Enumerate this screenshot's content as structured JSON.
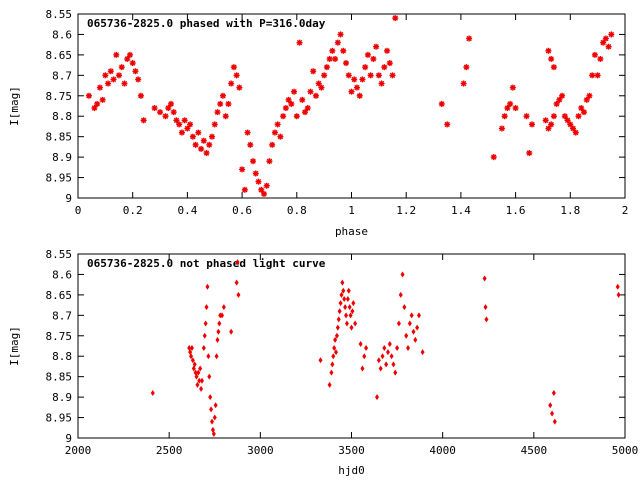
{
  "chart_data": [
    {
      "type": "scatter",
      "title": "065736-2825.0 phased with P=316.0day",
      "xlabel": "phase",
      "ylabel": "I[mag]",
      "xlim": [
        0,
        2
      ],
      "ylim": [
        8.55,
        9
      ],
      "y_inverted": true,
      "x_ticks": [
        "0",
        "0.2",
        "0.4",
        "0.6",
        "0.8",
        "1",
        "1.2",
        "1.4",
        "1.6",
        "1.8",
        "2"
      ],
      "y_ticks": [
        "8.55",
        "8.6",
        "8.65",
        "8.7",
        "8.75",
        "8.8",
        "8.85",
        "8.9",
        "8.95",
        "9"
      ],
      "series": [
        {
          "color": "#ee0000",
          "marker": "asterisk",
          "points": [
            [
              0.04,
              8.75
            ],
            [
              0.06,
              8.78
            ],
            [
              0.07,
              8.77
            ],
            [
              0.08,
              8.73
            ],
            [
              0.09,
              8.76
            ],
            [
              0.1,
              8.7
            ],
            [
              0.11,
              8.72
            ],
            [
              0.12,
              8.69
            ],
            [
              0.13,
              8.71
            ],
            [
              0.14,
              8.65
            ],
            [
              0.15,
              8.7
            ],
            [
              0.16,
              8.68
            ],
            [
              0.17,
              8.72
            ],
            [
              0.18,
              8.66
            ],
            [
              0.19,
              8.65
            ],
            [
              0.2,
              8.67
            ],
            [
              0.21,
              8.69
            ],
            [
              0.22,
              8.71
            ],
            [
              0.23,
              8.75
            ],
            [
              0.24,
              8.81
            ],
            [
              0.28,
              8.78
            ],
            [
              0.3,
              8.79
            ],
            [
              0.32,
              8.8
            ],
            [
              0.33,
              8.78
            ],
            [
              0.34,
              8.77
            ],
            [
              0.35,
              8.79
            ],
            [
              0.36,
              8.81
            ],
            [
              0.37,
              8.82
            ],
            [
              0.38,
              8.84
            ],
            [
              0.39,
              8.81
            ],
            [
              0.4,
              8.83
            ],
            [
              0.41,
              8.82
            ],
            [
              0.42,
              8.85
            ],
            [
              0.43,
              8.87
            ],
            [
              0.44,
              8.84
            ],
            [
              0.45,
              8.88
            ],
            [
              0.46,
              8.86
            ],
            [
              0.47,
              8.89
            ],
            [
              0.48,
              8.87
            ],
            [
              0.49,
              8.85
            ],
            [
              0.5,
              8.82
            ],
            [
              0.51,
              8.79
            ],
            [
              0.52,
              8.77
            ],
            [
              0.53,
              8.75
            ],
            [
              0.54,
              8.8
            ],
            [
              0.55,
              8.77
            ],
            [
              0.56,
              8.72
            ],
            [
              0.57,
              8.68
            ],
            [
              0.58,
              8.7
            ],
            [
              0.59,
              8.73
            ],
            [
              0.6,
              8.93
            ],
            [
              0.61,
              8.98
            ],
            [
              0.62,
              8.84
            ],
            [
              0.63,
              8.87
            ],
            [
              0.64,
              8.91
            ],
            [
              0.65,
              8.94
            ],
            [
              0.66,
              8.96
            ],
            [
              0.67,
              8.98
            ],
            [
              0.68,
              8.99
            ],
            [
              0.69,
              8.97
            ],
            [
              0.7,
              8.91
            ],
            [
              0.71,
              8.87
            ],
            [
              0.72,
              8.84
            ],
            [
              0.73,
              8.82
            ],
            [
              0.74,
              8.85
            ],
            [
              0.75,
              8.8
            ],
            [
              0.76,
              8.78
            ],
            [
              0.77,
              8.76
            ],
            [
              0.78,
              8.77
            ],
            [
              0.79,
              8.74
            ],
            [
              0.8,
              8.8
            ],
            [
              0.81,
              8.62
            ],
            [
              0.82,
              8.76
            ],
            [
              0.83,
              8.79
            ],
            [
              0.84,
              8.78
            ],
            [
              0.85,
              8.74
            ],
            [
              0.86,
              8.69
            ],
            [
              0.87,
              8.75
            ],
            [
              0.88,
              8.72
            ],
            [
              0.89,
              8.73
            ],
            [
              0.9,
              8.7
            ],
            [
              0.91,
              8.68
            ],
            [
              0.92,
              8.66
            ],
            [
              0.93,
              8.64
            ],
            [
              0.94,
              8.66
            ],
            [
              0.95,
              8.62
            ],
            [
              0.96,
              8.6
            ],
            [
              0.97,
              8.64
            ],
            [
              0.98,
              8.67
            ],
            [
              0.99,
              8.7
            ],
            [
              1.0,
              8.74
            ],
            [
              1.01,
              8.71
            ],
            [
              1.02,
              8.73
            ],
            [
              1.03,
              8.75
            ],
            [
              1.04,
              8.71
            ],
            [
              1.05,
              8.68
            ],
            [
              1.06,
              8.65
            ],
            [
              1.07,
              8.7
            ],
            [
              1.08,
              8.66
            ],
            [
              1.09,
              8.63
            ],
            [
              1.1,
              8.7
            ],
            [
              1.11,
              8.72
            ],
            [
              1.12,
              8.68
            ],
            [
              1.13,
              8.64
            ],
            [
              1.14,
              8.67
            ],
            [
              1.15,
              8.7
            ],
            [
              1.16,
              8.56
            ],
            [
              1.33,
              8.77
            ],
            [
              1.35,
              8.82
            ],
            [
              1.41,
              8.72
            ],
            [
              1.42,
              8.68
            ],
            [
              1.43,
              8.61
            ],
            [
              1.52,
              8.9
            ],
            [
              1.55,
              8.83
            ],
            [
              1.56,
              8.8
            ],
            [
              1.57,
              8.78
            ],
            [
              1.58,
              8.77
            ],
            [
              1.59,
              8.73
            ],
            [
              1.6,
              8.78
            ],
            [
              1.64,
              8.8
            ],
            [
              1.65,
              8.89
            ],
            [
              1.66,
              8.82
            ],
            [
              1.71,
              8.81
            ],
            [
              1.72,
              8.83
            ],
            [
              1.73,
              8.82
            ],
            [
              1.74,
              8.8
            ],
            [
              1.75,
              8.77
            ],
            [
              1.76,
              8.76
            ],
            [
              1.77,
              8.75
            ],
            [
              1.78,
              8.8
            ],
            [
              1.79,
              8.81
            ],
            [
              1.8,
              8.82
            ],
            [
              1.81,
              8.83
            ],
            [
              1.82,
              8.84
            ],
            [
              1.83,
              8.8
            ],
            [
              1.84,
              8.78
            ],
            [
              1.85,
              8.79
            ],
            [
              1.86,
              8.76
            ],
            [
              1.87,
              8.75
            ],
            [
              1.88,
              8.7
            ],
            [
              1.89,
              8.65
            ],
            [
              1.9,
              8.7
            ],
            [
              1.91,
              8.66
            ],
            [
              1.92,
              8.62
            ],
            [
              1.93,
              8.61
            ],
            [
              1.94,
              8.63
            ],
            [
              1.95,
              8.6
            ],
            [
              1.72,
              8.64
            ],
            [
              1.73,
              8.66
            ],
            [
              1.74,
              8.68
            ]
          ]
        }
      ]
    },
    {
      "type": "scatter",
      "title": "065736-2825.0 not phased light curve",
      "xlabel": "hjd0",
      "ylabel": "I[mag]",
      "xlim": [
        2000,
        5000
      ],
      "ylim": [
        8.55,
        9
      ],
      "y_inverted": true,
      "x_ticks": [
        "2000",
        "2500",
        "3000",
        "3500",
        "4000",
        "4500",
        "5000"
      ],
      "y_ticks": [
        "8.55",
        "8.6",
        "8.65",
        "8.7",
        "8.75",
        "8.8",
        "8.85",
        "8.9",
        "8.95",
        "9"
      ],
      "series": [
        {
          "color": "#ee0000",
          "marker": "diamond",
          "points": [
            [
              2410,
              8.89
            ],
            [
              2610,
              8.78
            ],
            [
              2615,
              8.79
            ],
            [
              2620,
              8.8
            ],
            [
              2625,
              8.78
            ],
            [
              2630,
              8.81
            ],
            [
              2635,
              8.83
            ],
            [
              2640,
              8.82
            ],
            [
              2645,
              8.84
            ],
            [
              2650,
              8.85
            ],
            [
              2655,
              8.87
            ],
            [
              2660,
              8.84
            ],
            [
              2665,
              8.86
            ],
            [
              2670,
              8.83
            ],
            [
              2675,
              8.88
            ],
            [
              2680,
              8.86
            ],
            [
              2690,
              8.78
            ],
            [
              2695,
              8.75
            ],
            [
              2700,
              8.72
            ],
            [
              2705,
              8.68
            ],
            [
              2710,
              8.63
            ],
            [
              2715,
              8.8
            ],
            [
              2720,
              8.85
            ],
            [
              2725,
              8.9
            ],
            [
              2730,
              8.93
            ],
            [
              2735,
              8.96
            ],
            [
              2740,
              8.98
            ],
            [
              2745,
              8.99
            ],
            [
              2750,
              8.95
            ],
            [
              2755,
              8.92
            ],
            [
              2760,
              8.8
            ],
            [
              2765,
              8.76
            ],
            [
              2770,
              8.74
            ],
            [
              2775,
              8.72
            ],
            [
              2780,
              8.7
            ],
            [
              2790,
              8.7
            ],
            [
              2800,
              8.68
            ],
            [
              2840,
              8.74
            ],
            [
              2870,
              8.62
            ],
            [
              2875,
              8.57
            ],
            [
              2880,
              8.65
            ],
            [
              3330,
              8.81
            ],
            [
              3380,
              8.87
            ],
            [
              3390,
              8.84
            ],
            [
              3395,
              8.82
            ],
            [
              3400,
              8.8
            ],
            [
              3405,
              8.78
            ],
            [
              3410,
              8.76
            ],
            [
              3415,
              8.79
            ],
            [
              3420,
              8.75
            ],
            [
              3425,
              8.73
            ],
            [
              3430,
              8.71
            ],
            [
              3435,
              8.69
            ],
            [
              3440,
              8.67
            ],
            [
              3445,
              8.65
            ],
            [
              3450,
              8.62
            ],
            [
              3455,
              8.64
            ],
            [
              3460,
              8.66
            ],
            [
              3465,
              8.68
            ],
            [
              3470,
              8.7
            ],
            [
              3475,
              8.72
            ],
            [
              3480,
              8.66
            ],
            [
              3485,
              8.64
            ],
            [
              3490,
              8.68
            ],
            [
              3495,
              8.7
            ],
            [
              3500,
              8.73
            ],
            [
              3505,
              8.69
            ],
            [
              3510,
              8.67
            ],
            [
              3520,
              8.72
            ],
            [
              3550,
              8.77
            ],
            [
              3560,
              8.83
            ],
            [
              3570,
              8.8
            ],
            [
              3580,
              8.78
            ],
            [
              3640,
              8.9
            ],
            [
              3650,
              8.81
            ],
            [
              3660,
              8.83
            ],
            [
              3670,
              8.8
            ],
            [
              3680,
              8.78
            ],
            [
              3690,
              8.82
            ],
            [
              3700,
              8.79
            ],
            [
              3710,
              8.77
            ],
            [
              3720,
              8.8
            ],
            [
              3730,
              8.82
            ],
            [
              3740,
              8.84
            ],
            [
              3750,
              8.78
            ],
            [
              3760,
              8.72
            ],
            [
              3770,
              8.65
            ],
            [
              3780,
              8.6
            ],
            [
              3790,
              8.68
            ],
            [
              3800,
              8.75
            ],
            [
              3810,
              8.78
            ],
            [
              3820,
              8.72
            ],
            [
              3830,
              8.7
            ],
            [
              3840,
              8.74
            ],
            [
              3850,
              8.76
            ],
            [
              3860,
              8.73
            ],
            [
              3870,
              8.7
            ],
            [
              3890,
              8.79
            ],
            [
              4230,
              8.61
            ],
            [
              4235,
              8.68
            ],
            [
              4240,
              8.71
            ],
            [
              4590,
              8.92
            ],
            [
              4600,
              8.94
            ],
            [
              4610,
              8.89
            ],
            [
              4615,
              8.96
            ],
            [
              4960,
              8.63
            ],
            [
              4965,
              8.65
            ]
          ]
        }
      ]
    }
  ]
}
